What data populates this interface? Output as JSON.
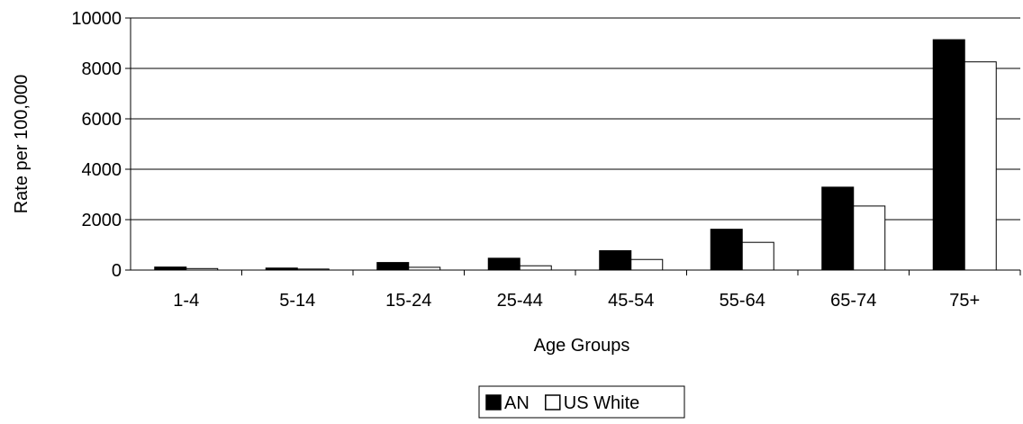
{
  "chart_data": {
    "type": "bar",
    "title": "",
    "xlabel": "Age Groups",
    "ylabel": "Rate per 100,000",
    "ylim": [
      0,
      10000
    ],
    "yticks": [
      0,
      2000,
      4000,
      6000,
      8000,
      10000
    ],
    "grid": "horizontal",
    "legend_position": "bottom",
    "categories": [
      "1-4",
      "5-14",
      "15-24",
      "25-44",
      "45-54",
      "55-64",
      "65-74",
      "75+"
    ],
    "series": [
      {
        "name": "AN",
        "color": "#000000",
        "values": [
          120,
          80,
          300,
          470,
          770,
          1620,
          3290,
          9140
        ]
      },
      {
        "name": "US White",
        "color": "#ffffff",
        "values": [
          60,
          40,
          110,
          170,
          420,
          1100,
          2540,
          8260
        ]
      }
    ]
  }
}
